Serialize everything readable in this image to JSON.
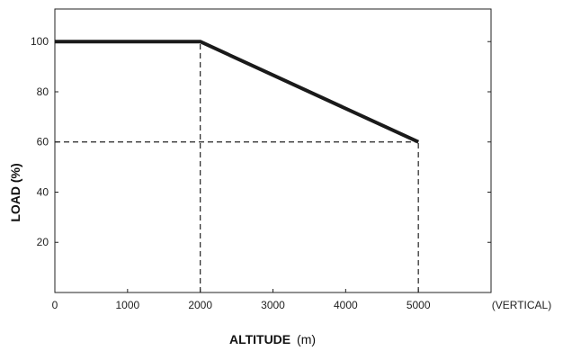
{
  "chart_data": {
    "type": "line",
    "title": "",
    "xlabel_main": "ALTITUDE",
    "xlabel_unit": "(m)",
    "ylabel": "LOAD (%)",
    "x_note": "(VERTICAL)",
    "xlim": [
      0,
      6000
    ],
    "ylim": [
      0,
      113
    ],
    "x_ticks": [
      0,
      1000,
      2000,
      3000,
      4000,
      5000
    ],
    "x_tick_labels": [
      "0",
      "1000",
      "2000",
      "3000",
      "4000",
      "5000"
    ],
    "y_ticks": [
      20,
      40,
      60,
      80,
      100
    ],
    "y_tick_labels": [
      "20",
      "40",
      "60",
      "80",
      "100"
    ],
    "series": [
      {
        "x": [
          0,
          2000,
          5000
        ],
        "y": [
          100,
          100,
          60
        ]
      }
    ],
    "reference_lines": [
      {
        "orientation": "vertical",
        "x": 2000,
        "y_from": 0,
        "y_to": 100
      },
      {
        "orientation": "vertical",
        "x": 5000,
        "y_from": 0,
        "y_to": 60
      },
      {
        "orientation": "horizontal",
        "y": 60,
        "x_from": 0,
        "x_to": 5000
      }
    ],
    "grid": false,
    "colors": {
      "line": "#1a1a1a",
      "axis": "#222222",
      "text": "#222222"
    }
  }
}
